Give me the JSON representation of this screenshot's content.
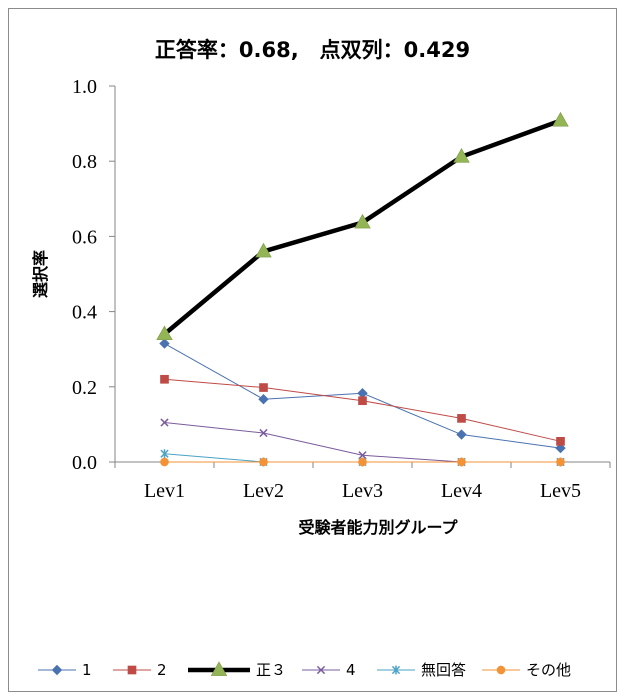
{
  "chart_data": {
    "type": "line",
    "title": "正答率：0.68,　点双列：0.429",
    "xlabel": "受験者能力別グループ",
    "ylabel": "選択率",
    "categories": [
      "Lev1",
      "Lev2",
      "Lev3",
      "Lev4",
      "Lev5"
    ],
    "ylim": [
      0,
      1.0
    ],
    "yticks": [
      "0.0",
      "0.2",
      "0.4",
      "0.6",
      "0.8",
      "1.0"
    ],
    "grid": false,
    "legend_position": "bottom",
    "series": [
      {
        "name": "1",
        "values": [
          0.315,
          0.167,
          0.183,
          0.073,
          0.037
        ],
        "color": "#4a72b0",
        "marker": "diamond",
        "thick": false
      },
      {
        "name": "2",
        "values": [
          0.22,
          0.198,
          0.163,
          0.116,
          0.055
        ],
        "color": "#bf4b47",
        "marker": "square",
        "thick": false
      },
      {
        "name": "正３",
        "values": [
          0.34,
          0.56,
          0.637,
          0.812,
          0.908
        ],
        "color": "#000000",
        "marker_color": "#94b556",
        "marker": "triangle",
        "thick": true
      },
      {
        "name": "4",
        "values": [
          0.105,
          0.077,
          0.018,
          0.0,
          0.0
        ],
        "color": "#7a5c9c",
        "marker": "x",
        "thick": false
      },
      {
        "name": "無回答",
        "values": [
          0.022,
          0.0,
          0.0,
          0.0,
          0.0
        ],
        "color": "#4aa3c4",
        "marker": "star",
        "thick": false
      },
      {
        "name": "その他",
        "values": [
          0.0,
          0.0,
          0.0,
          0.0,
          0.0
        ],
        "color": "#f39237",
        "marker": "circle",
        "thick": false
      }
    ]
  }
}
